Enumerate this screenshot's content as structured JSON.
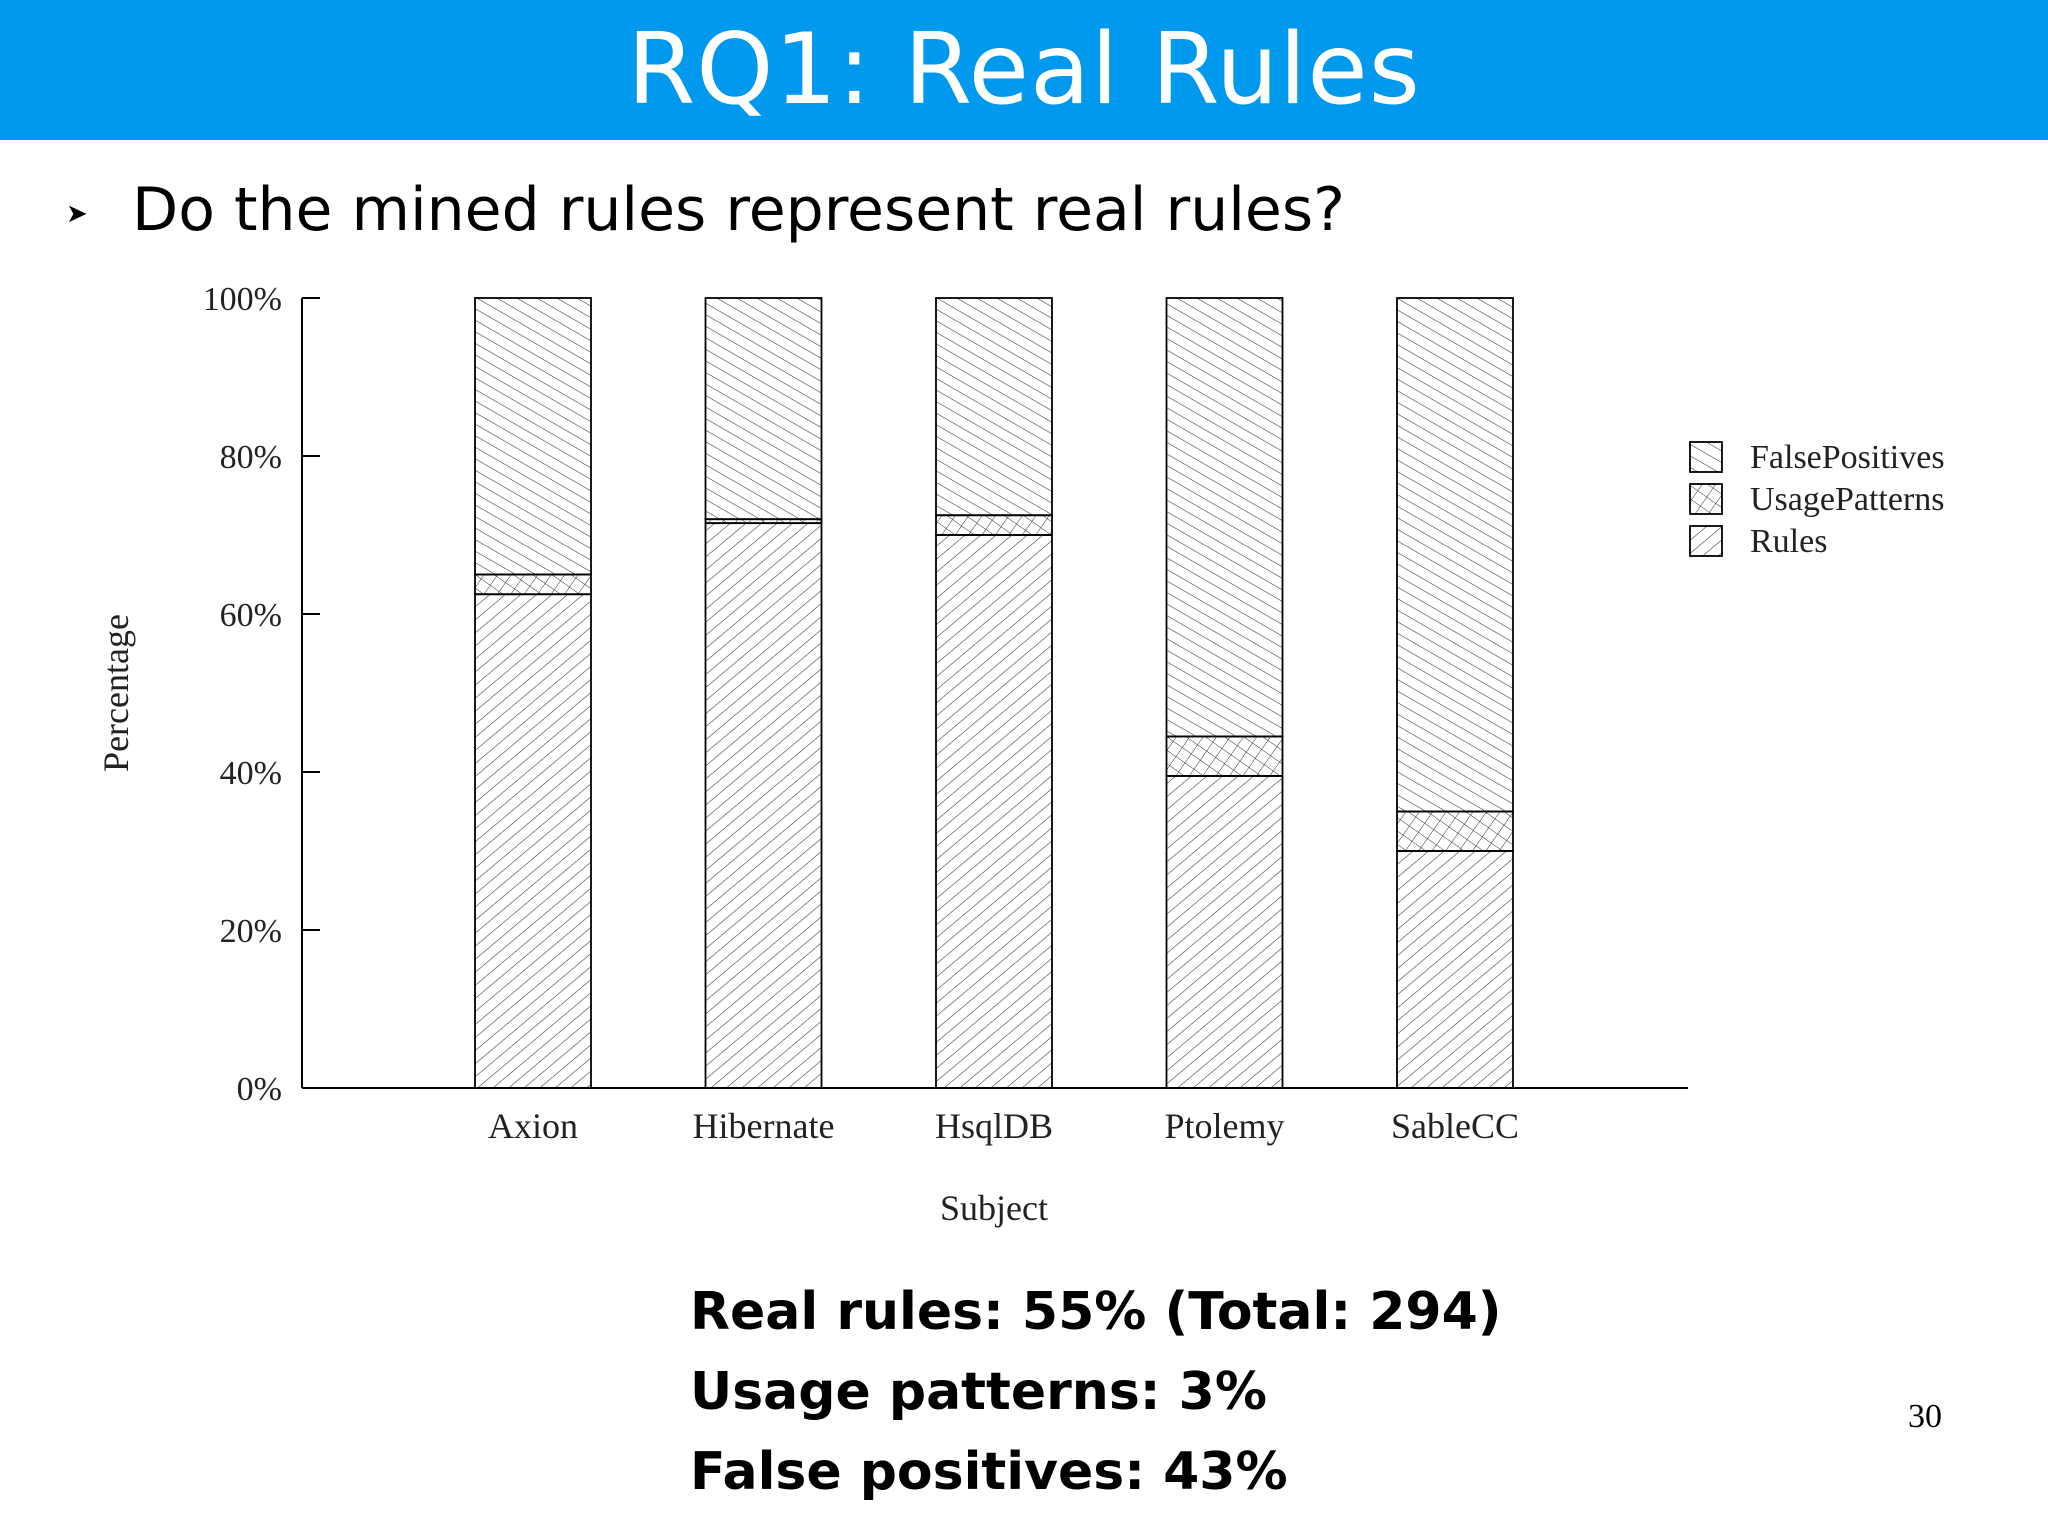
{
  "slide": {
    "title": "RQ1: Real Rules",
    "bullet": "Do the mined rules represent real rules?",
    "bullet_icon": "arrowhead-bullet-icon",
    "summary": [
      "Real rules: 55% (Total: 294)",
      "Usage patterns: 3%",
      "False positives: 43%"
    ],
    "page_number": "30",
    "colors": {
      "title_bar": "#0099ee",
      "title_text": "#ffffff"
    }
  },
  "chart_data": {
    "type": "bar",
    "stacked": true,
    "title": "",
    "xlabel": "Subject",
    "ylabel": "Percentage",
    "ylim": [
      0,
      100
    ],
    "yticks": [
      "0%",
      "20%",
      "40%",
      "60%",
      "80%",
      "100%"
    ],
    "categories": [
      "Axion",
      "Hibernate",
      "HsqlDB",
      "Ptolemy",
      "SableCC"
    ],
    "series": [
      {
        "name": "Rules",
        "values": [
          62.5,
          71.5,
          70,
          39.5,
          30
        ],
        "pattern": "back-diagonal-hatch"
      },
      {
        "name": "UsagePatterns",
        "values": [
          2.5,
          0.5,
          2.5,
          5,
          5
        ],
        "pattern": "cross-hatch"
      },
      {
        "name": "FalsePositives",
        "values": [
          35,
          28,
          27.5,
          55.5,
          65
        ],
        "pattern": "forward-diagonal-hatch"
      }
    ],
    "legend_order": [
      "FalsePositives",
      "UsagePatterns",
      "Rules"
    ],
    "legend_position": "right",
    "grid": false
  }
}
